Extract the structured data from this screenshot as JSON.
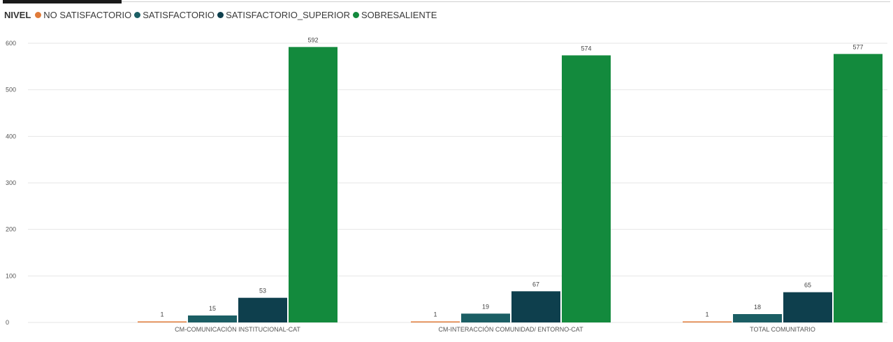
{
  "legend": {
    "title": "NIVEL",
    "items": [
      {
        "label": "NO SATISFACTORIO",
        "color": "#e07b39"
      },
      {
        "label": "SATISFACTORIO",
        "color": "#1b5e64"
      },
      {
        "label": "SATISFACTORIO_SUPERIOR",
        "color": "#0e3f4d"
      },
      {
        "label": "SOBRESALIENTE",
        "color": "#138a3d"
      }
    ]
  },
  "chart_data": {
    "type": "bar",
    "categories": [
      "CM-COMUNICACIÓN INSTITUCIONAL-CAT",
      "CM-INTERACCIÓN COMUNIDAD/ ENTORNO-CAT",
      "TOTAL COMUNITARIO"
    ],
    "series": [
      {
        "name": "NO SATISFACTORIO",
        "values": [
          1,
          1,
          1
        ],
        "color": "#e07b39"
      },
      {
        "name": "SATISFACTORIO",
        "values": [
          15,
          19,
          18
        ],
        "color": "#1b5e64"
      },
      {
        "name": "SATISFACTORIO_SUPERIOR",
        "values": [
          53,
          67,
          65
        ],
        "color": "#0e3f4d"
      },
      {
        "name": "SOBRESALIENTE",
        "values": [
          592,
          574,
          577
        ],
        "color": "#138a3d"
      }
    ],
    "yticks": [
      0,
      100,
      200,
      300,
      400,
      500,
      600
    ],
    "ylim": [
      0,
      600
    ],
    "grid": true,
    "legend_position": "top-left",
    "data_labels": true
  }
}
